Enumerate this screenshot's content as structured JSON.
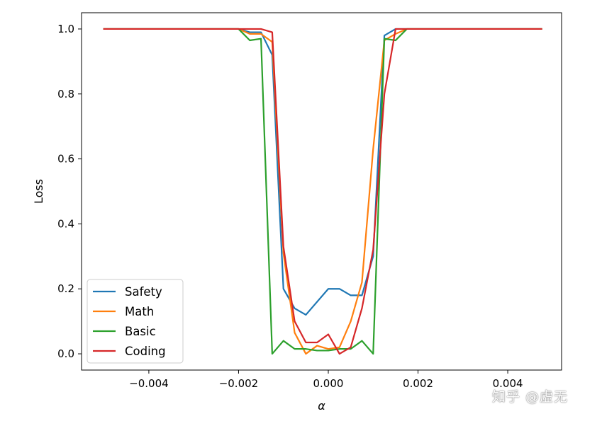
{
  "chart_data": {
    "type": "line",
    "xlabel": "α",
    "ylabel": "Loss",
    "xlim": [
      -0.0055,
      0.0052
    ],
    "ylim": [
      -0.05,
      1.05
    ],
    "x_ticks": [
      {
        "value": -0.004,
        "label": "−0.004"
      },
      {
        "value": -0.002,
        "label": "−0.002"
      },
      {
        "value": 0.0,
        "label": "0.000"
      },
      {
        "value": 0.002,
        "label": "0.002"
      },
      {
        "value": 0.004,
        "label": "0.004"
      }
    ],
    "y_ticks": [
      {
        "value": 0.0,
        "label": "0.0"
      },
      {
        "value": 0.2,
        "label": "0.2"
      },
      {
        "value": 0.4,
        "label": "0.4"
      },
      {
        "value": 0.6,
        "label": "0.6"
      },
      {
        "value": 0.8,
        "label": "0.8"
      },
      {
        "value": 1.0,
        "label": "1.0"
      }
    ],
    "grid": false,
    "legend_position": "lower-left",
    "x": [
      -0.005,
      -0.00475,
      -0.0045,
      -0.00425,
      -0.004,
      -0.00375,
      -0.0035,
      -0.00325,
      -0.003,
      -0.00275,
      -0.0025,
      -0.00225,
      -0.002,
      -0.00175,
      -0.0015,
      -0.00125,
      -0.001,
      -0.00075,
      -0.0005,
      -0.00025,
      0.0,
      0.00025,
      0.0005,
      0.00075,
      0.001,
      0.00125,
      0.0015,
      0.00175,
      0.002,
      0.00225,
      0.0025,
      0.00275,
      0.003,
      0.00325,
      0.0035,
      0.00375,
      0.004,
      0.00425,
      0.0045,
      0.00475
    ],
    "series": [
      {
        "name": "Safety",
        "color": "#1f77b4",
        "values": [
          1,
          1,
          1,
          1,
          1,
          1,
          1,
          1,
          1,
          1,
          1,
          1,
          1,
          0.99,
          0.99,
          0.92,
          0.2,
          0.14,
          0.12,
          0.16,
          0.2,
          0.2,
          0.18,
          0.18,
          0.3,
          0.98,
          1,
          1,
          1,
          1,
          1,
          1,
          1,
          1,
          1,
          1,
          1,
          1,
          1,
          1
        ]
      },
      {
        "name": "Math",
        "color": "#ff7f0e",
        "values": [
          1,
          1,
          1,
          1,
          1,
          1,
          1,
          1,
          1,
          1,
          1,
          1,
          1,
          0.985,
          0.985,
          0.96,
          0.31,
          0.065,
          0.0,
          0.025,
          0.015,
          0.02,
          0.1,
          0.22,
          0.63,
          0.965,
          0.985,
          1,
          1,
          1,
          1,
          1,
          1,
          1,
          1,
          1,
          1,
          1,
          1,
          1
        ]
      },
      {
        "name": "Basic",
        "color": "#2ca02c",
        "values": [
          1,
          1,
          1,
          1,
          1,
          1,
          1,
          1,
          1,
          1,
          1,
          1,
          1,
          0.965,
          0.97,
          0.0,
          0.04,
          0.015,
          0.015,
          0.01,
          0.01,
          0.015,
          0.015,
          0.04,
          0.0,
          0.97,
          0.965,
          1,
          1,
          1,
          1,
          1,
          1,
          1,
          1,
          1,
          1,
          1,
          1,
          1
        ]
      },
      {
        "name": "Coding",
        "color": "#d62728",
        "values": [
          1,
          1,
          1,
          1,
          1,
          1,
          1,
          1,
          1,
          1,
          1,
          1,
          1,
          1,
          1,
          0.99,
          0.33,
          0.1,
          0.035,
          0.035,
          0.06,
          0.0,
          0.02,
          0.14,
          0.32,
          0.8,
          1,
          1,
          1,
          1,
          1,
          1,
          1,
          1,
          1,
          1,
          1,
          1,
          1,
          1
        ]
      }
    ]
  },
  "watermark": "知乎 @虚无"
}
